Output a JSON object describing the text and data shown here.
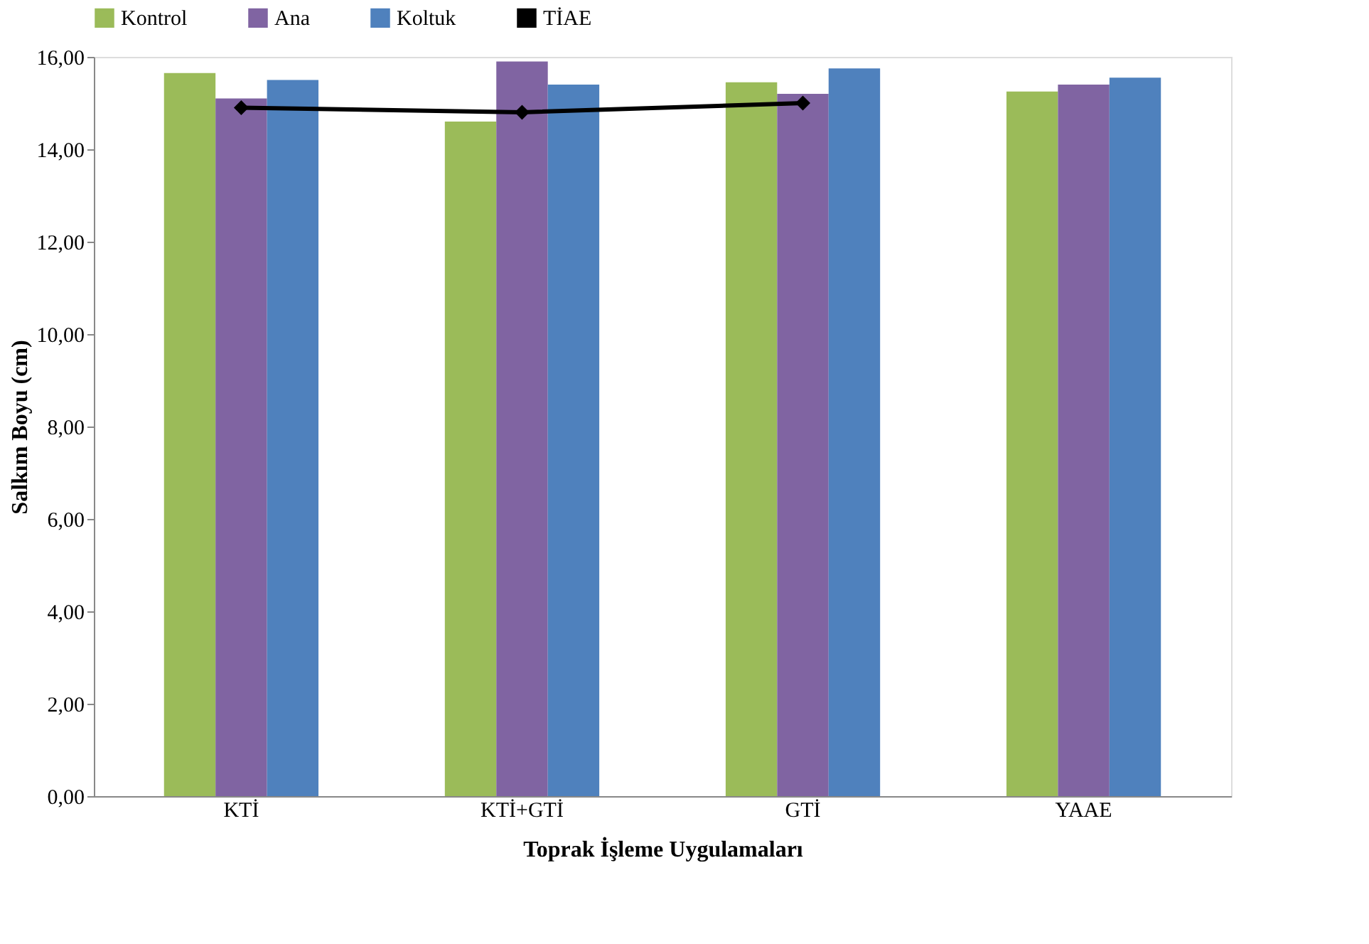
{
  "chart_data": {
    "type": "bar",
    "xlabel": "Toprak İşleme Uygulamaları",
    "ylabel": "Salkım Boyu (cm)",
    "categories": [
      "KTİ",
      "KTİ+GTİ",
      "GTİ",
      "YAAE"
    ],
    "series": [
      {
        "name": "Kontrol",
        "color": "#9bbb59",
        "values": [
          15.65,
          14.6,
          15.45,
          15.25
        ]
      },
      {
        "name": "Ana",
        "color": "#8064a2",
        "values": [
          15.1,
          15.9,
          15.2,
          15.4
        ]
      },
      {
        "name": "Koltuk",
        "color": "#4f81bd",
        "values": [
          15.5,
          15.4,
          15.75,
          15.55
        ]
      },
      {
        "name": "TİAE",
        "type": "line",
        "color": "#000000",
        "marker": "diamond",
        "values": [
          14.9,
          14.8,
          15.0,
          null
        ]
      }
    ],
    "ylim": [
      0,
      16
    ],
    "yticks": [
      {
        "value": 0,
        "label": "0,00"
      },
      {
        "value": 2,
        "label": "2,00"
      },
      {
        "value": 4,
        "label": "4,00"
      },
      {
        "value": 6,
        "label": "6,00"
      },
      {
        "value": 8,
        "label": "8,00"
      },
      {
        "value": 10,
        "label": "10,00"
      },
      {
        "value": 12,
        "label": "12,00"
      },
      {
        "value": 14,
        "label": "14,00"
      },
      {
        "value": 16,
        "label": "16,00"
      }
    ],
    "grid": false,
    "legend": "top"
  }
}
